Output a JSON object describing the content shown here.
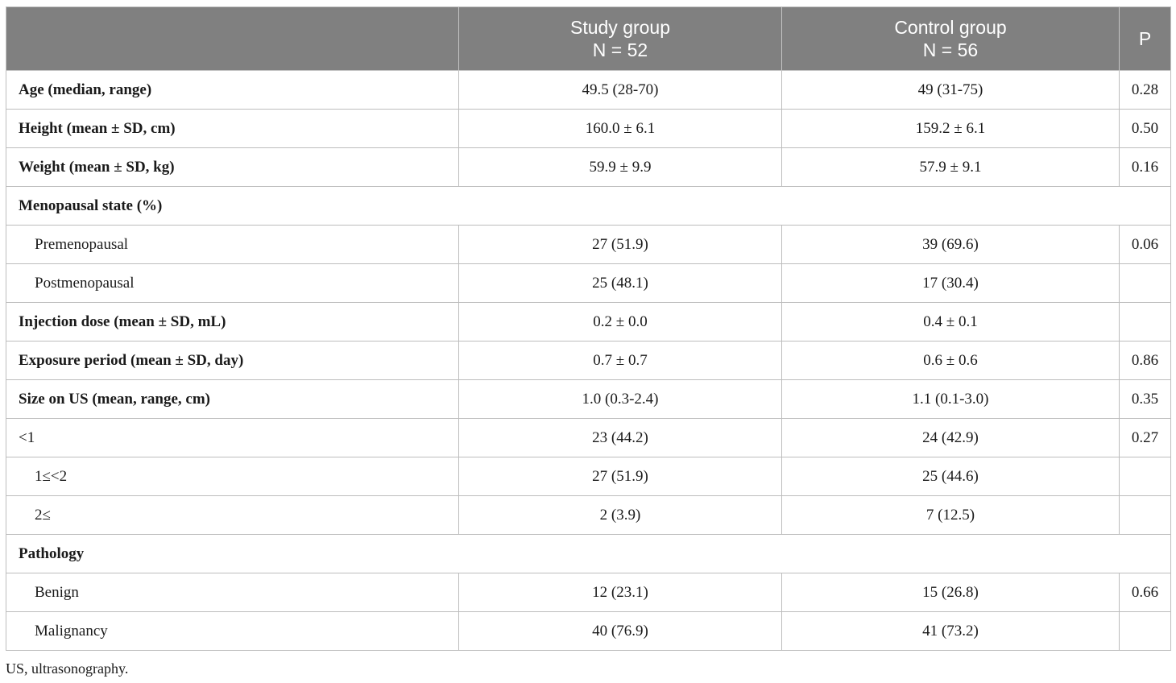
{
  "header": {
    "col0": "",
    "study_line1": "Study group",
    "study_line2": "N = 52",
    "control_line1": "Control group",
    "control_line2": "N = 56",
    "p": "P"
  },
  "rows": [
    {
      "label": "Age (median, range)",
      "study": "49.5 (28-70)",
      "control": "49 (31-75)",
      "p": "0.28"
    },
    {
      "label": "Height (mean ± SD, cm)",
      "study": "160.0 ± 6.1",
      "control": "159.2 ± 6.1",
      "p": "0.50"
    },
    {
      "label": "Weight (mean ± SD, kg)",
      "study": "59.9 ± 9.9",
      "control": "57.9 ± 9.1",
      "p": "0.16"
    },
    {
      "label": "Menopausal state (%)"
    },
    {
      "label": "Premenopausal",
      "study": "27 (51.9)",
      "control": "39 (69.6)",
      "p": "0.06"
    },
    {
      "label": "Postmenopausal",
      "study": "25 (48.1)",
      "control": "17 (30.4)",
      "p": ""
    },
    {
      "label": "Injection dose (mean ± SD, mL)",
      "study": "0.2 ± 0.0",
      "control": "0.4 ± 0.1",
      "p": ""
    },
    {
      "label": "Exposure period (mean ± SD, day)",
      "study": "0.7 ± 0.7",
      "control": "0.6 ± 0.6",
      "p": "0.86"
    },
    {
      "label": "Size on US (mean, range, cm)",
      "study": "1.0 (0.3-2.4)",
      "control": "1.1 (0.1-3.0)",
      "p": "0.35"
    },
    {
      "label": "<1",
      "study": "23 (44.2)",
      "control": "24 (42.9)",
      "p": "0.27"
    },
    {
      "label": "1≤<2",
      "study": "27 (51.9)",
      "control": "25 (44.6)",
      "p": ""
    },
    {
      "label": "2≤",
      "study": "2 (3.9)",
      "control": "7 (12.5)",
      "p": ""
    },
    {
      "label": "Pathology"
    },
    {
      "label": "Benign",
      "study": "12 (23.1)",
      "control": "15 (26.8)",
      "p": "0.66"
    },
    {
      "label": "Malignancy",
      "study": "40 (76.9)",
      "control": "41 (73.2)",
      "p": ""
    }
  ],
  "footnote": "US, ultrasonography.",
  "colors": {
    "header_bg": "#808080",
    "header_text": "#ffffff",
    "border": "#bdbdbd"
  }
}
